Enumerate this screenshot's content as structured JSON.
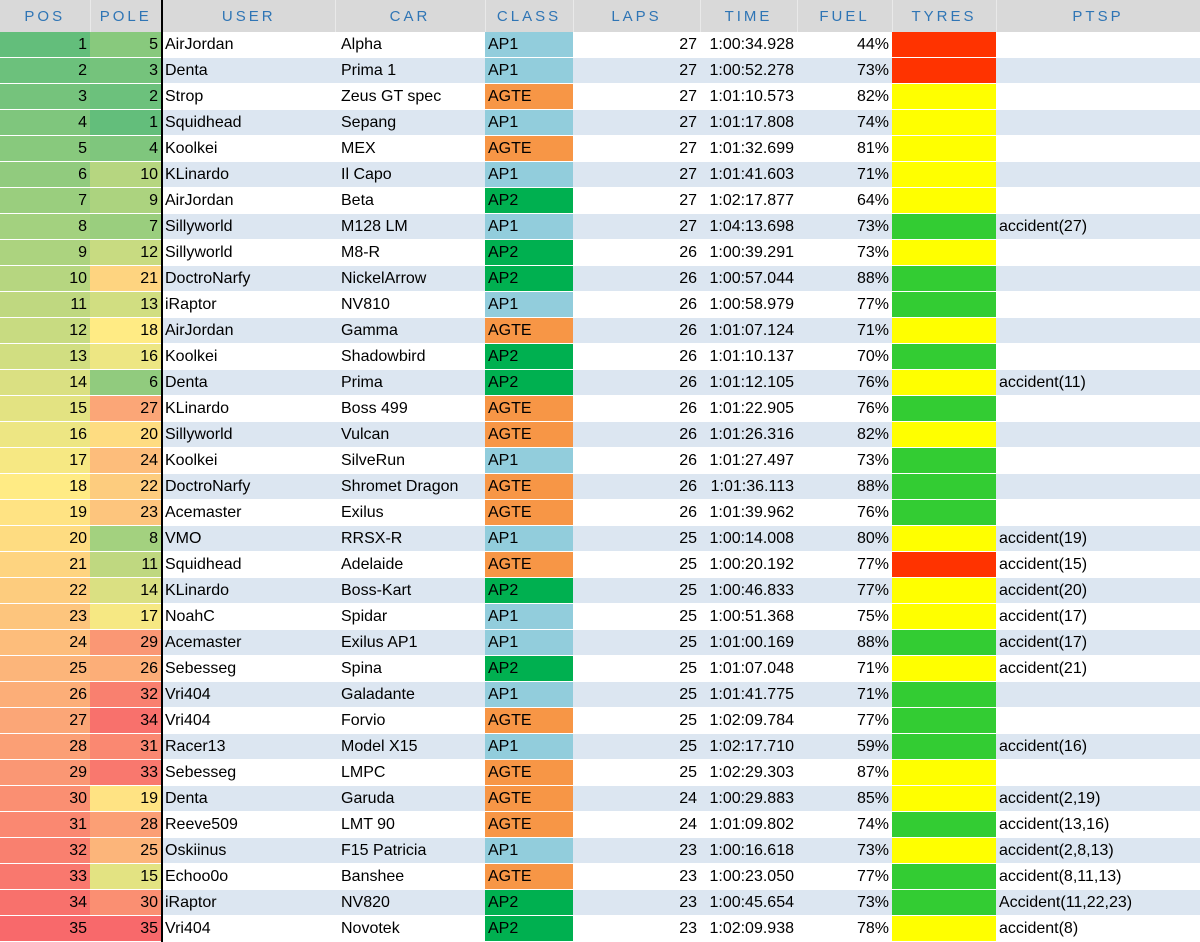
{
  "headers": {
    "pos": "POS",
    "pole": "POLE",
    "user": "USER",
    "car": "CAR",
    "class": "CLASS",
    "laps": "LAPS",
    "time": "TIME",
    "fuel": "FUEL",
    "tyres": "TYRES",
    "ptsp": "PTSP"
  },
  "colors": {
    "class_AP1": "#92cddc",
    "class_AP2": "#00b050",
    "class_AGTE": "#f79646",
    "tyre_red": "#ff3300",
    "tyre_yellow": "#ffff00",
    "tyre_green": "#33cc33",
    "scale_green": "#63be7b",
    "scale_yellow": "#ffeb84",
    "scale_red": "#f8696b"
  },
  "rows": [
    {
      "pos": "1",
      "pole": "5",
      "user": "AirJordan",
      "car": "Alpha",
      "class": "AP1",
      "laps": "27",
      "time": "1:00:34.928",
      "fuel": "44%",
      "tyre": "red",
      "ptsp": ""
    },
    {
      "pos": "2",
      "pole": "3",
      "user": "Denta",
      "car": "Prima 1",
      "class": "AP1",
      "laps": "27",
      "time": "1:00:52.278",
      "fuel": "73%",
      "tyre": "red",
      "ptsp": ""
    },
    {
      "pos": "3",
      "pole": "2",
      "user": "Strop",
      "car": "Zeus GT spec",
      "class": "AGTE",
      "laps": "27",
      "time": "1:01:10.573",
      "fuel": "82%",
      "tyre": "yellow",
      "ptsp": ""
    },
    {
      "pos": "4",
      "pole": "1",
      "user": "Squidhead",
      "car": "Sepang",
      "class": "AP1",
      "laps": "27",
      "time": "1:01:17.808",
      "fuel": "74%",
      "tyre": "yellow",
      "ptsp": ""
    },
    {
      "pos": "5",
      "pole": "4",
      "user": "Koolkei",
      "car": "MEX",
      "class": "AGTE",
      "laps": "27",
      "time": "1:01:32.699",
      "fuel": "81%",
      "tyre": "yellow",
      "ptsp": ""
    },
    {
      "pos": "6",
      "pole": "10",
      "user": "KLinardo",
      "car": "Il Capo",
      "class": "AP1",
      "laps": "27",
      "time": "1:01:41.603",
      "fuel": "71%",
      "tyre": "yellow",
      "ptsp": ""
    },
    {
      "pos": "7",
      "pole": "9",
      "user": "AirJordan",
      "car": "Beta",
      "class": "AP2",
      "laps": "27",
      "time": "1:02:17.877",
      "fuel": "64%",
      "tyre": "yellow",
      "ptsp": ""
    },
    {
      "pos": "8",
      "pole": "7",
      "user": "Sillyworld",
      "car": "M128 LM",
      "class": "AP1",
      "laps": "27",
      "time": "1:04:13.698",
      "fuel": "73%",
      "tyre": "green",
      "ptsp": "accident(27)"
    },
    {
      "pos": "9",
      "pole": "12",
      "user": "Sillyworld",
      "car": "M8-R",
      "class": "AP2",
      "laps": "26",
      "time": "1:00:39.291",
      "fuel": "73%",
      "tyre": "yellow",
      "ptsp": ""
    },
    {
      "pos": "10",
      "pole": "21",
      "user": "DoctroNarfy",
      "car": "NickelArrow",
      "class": "AP2",
      "laps": "26",
      "time": "1:00:57.044",
      "fuel": "88%",
      "tyre": "green",
      "ptsp": ""
    },
    {
      "pos": "11",
      "pole": "13",
      "user": "iRaptor",
      "car": "NV810",
      "class": "AP1",
      "laps": "26",
      "time": "1:00:58.979",
      "fuel": "77%",
      "tyre": "green",
      "ptsp": ""
    },
    {
      "pos": "12",
      "pole": "18",
      "user": "AirJordan",
      "car": "Gamma",
      "class": "AGTE",
      "laps": "26",
      "time": "1:01:07.124",
      "fuel": "71%",
      "tyre": "yellow",
      "ptsp": ""
    },
    {
      "pos": "13",
      "pole": "16",
      "user": "Koolkei",
      "car": "Shadowbird",
      "class": "AP2",
      "laps": "26",
      "time": "1:01:10.137",
      "fuel": "70%",
      "tyre": "green",
      "ptsp": ""
    },
    {
      "pos": "14",
      "pole": "6",
      "user": "Denta",
      "car": "Prima",
      "class": "AP2",
      "laps": "26",
      "time": "1:01:12.105",
      "fuel": "76%",
      "tyre": "yellow",
      "ptsp": "accident(11)"
    },
    {
      "pos": "15",
      "pole": "27",
      "user": "KLinardo",
      "car": "Boss 499",
      "class": "AGTE",
      "laps": "26",
      "time": "1:01:22.905",
      "fuel": "76%",
      "tyre": "green",
      "ptsp": ""
    },
    {
      "pos": "16",
      "pole": "20",
      "user": "Sillyworld",
      "car": "Vulcan",
      "class": "AGTE",
      "laps": "26",
      "time": "1:01:26.316",
      "fuel": "82%",
      "tyre": "yellow",
      "ptsp": ""
    },
    {
      "pos": "17",
      "pole": "24",
      "user": "Koolkei",
      "car": "SilveRun",
      "class": "AP1",
      "laps": "26",
      "time": "1:01:27.497",
      "fuel": "73%",
      "tyre": "green",
      "ptsp": ""
    },
    {
      "pos": "18",
      "pole": "22",
      "user": "DoctroNarfy",
      "car": "Shromet Dragon",
      "class": "AGTE",
      "laps": "26",
      "time": "1:01:36.113",
      "fuel": "88%",
      "tyre": "green",
      "ptsp": ""
    },
    {
      "pos": "19",
      "pole": "23",
      "user": "Acemaster",
      "car": "Exilus",
      "class": "AGTE",
      "laps": "26",
      "time": "1:01:39.962",
      "fuel": "76%",
      "tyre": "green",
      "ptsp": ""
    },
    {
      "pos": "20",
      "pole": "8",
      "user": "VMO",
      "car": "RRSX-R",
      "class": "AP1",
      "laps": "25",
      "time": "1:00:14.008",
      "fuel": "80%",
      "tyre": "yellow",
      "ptsp": "accident(19)"
    },
    {
      "pos": "21",
      "pole": "11",
      "user": "Squidhead",
      "car": "Adelaide",
      "class": "AGTE",
      "laps": "25",
      "time": "1:00:20.192",
      "fuel": "77%",
      "tyre": "red",
      "ptsp": "accident(15)"
    },
    {
      "pos": "22",
      "pole": "14",
      "user": "KLinardo",
      "car": "Boss-Kart",
      "class": "AP2",
      "laps": "25",
      "time": "1:00:46.833",
      "fuel": "77%",
      "tyre": "yellow",
      "ptsp": "accident(20)"
    },
    {
      "pos": "23",
      "pole": "17",
      "user": "NoahC",
      "car": "Spidar",
      "class": "AP1",
      "laps": "25",
      "time": "1:00:51.368",
      "fuel": "75%",
      "tyre": "yellow",
      "ptsp": "accident(17)"
    },
    {
      "pos": "24",
      "pole": "29",
      "user": "Acemaster",
      "car": "Exilus AP1",
      "class": "AP1",
      "laps": "25",
      "time": "1:01:00.169",
      "fuel": "88%",
      "tyre": "green",
      "ptsp": "accident(17)"
    },
    {
      "pos": "25",
      "pole": "26",
      "user": "Sebesseg",
      "car": "Spina",
      "class": "AP2",
      "laps": "25",
      "time": "1:01:07.048",
      "fuel": "71%",
      "tyre": "yellow",
      "ptsp": "accident(21)"
    },
    {
      "pos": "26",
      "pole": "32",
      "user": "Vri404",
      "car": "Galadante",
      "class": "AP1",
      "laps": "25",
      "time": "1:01:41.775",
      "fuel": "71%",
      "tyre": "green",
      "ptsp": ""
    },
    {
      "pos": "27",
      "pole": "34",
      "user": "Vri404",
      "car": "Forvio",
      "class": "AGTE",
      "laps": "25",
      "time": "1:02:09.784",
      "fuel": "77%",
      "tyre": "green",
      "ptsp": ""
    },
    {
      "pos": "28",
      "pole": "31",
      "user": "Racer13",
      "car": "Model X15",
      "class": "AP1",
      "laps": "25",
      "time": "1:02:17.710",
      "fuel": "59%",
      "tyre": "green",
      "ptsp": "accident(16)"
    },
    {
      "pos": "29",
      "pole": "33",
      "user": "Sebesseg",
      "car": "LMPC",
      "class": "AGTE",
      "laps": "25",
      "time": "1:02:29.303",
      "fuel": "87%",
      "tyre": "yellow",
      "ptsp": ""
    },
    {
      "pos": "30",
      "pole": "19",
      "user": "Denta",
      "car": "Garuda",
      "class": "AGTE",
      "laps": "24",
      "time": "1:00:29.883",
      "fuel": "85%",
      "tyre": "yellow",
      "ptsp": "accident(2,19)"
    },
    {
      "pos": "31",
      "pole": "28",
      "user": "Reeve509",
      "car": "LMT 90",
      "class": "AGTE",
      "laps": "24",
      "time": "1:01:09.802",
      "fuel": "74%",
      "tyre": "green",
      "ptsp": "accident(13,16)"
    },
    {
      "pos": "32",
      "pole": "25",
      "user": "Oskiinus",
      "car": "F15 Patricia",
      "class": "AP1",
      "laps": "23",
      "time": "1:00:16.618",
      "fuel": "73%",
      "tyre": "yellow",
      "ptsp": "accident(2,8,13)"
    },
    {
      "pos": "33",
      "pole": "15",
      "user": "Echoo0o",
      "car": "Banshee",
      "class": "AGTE",
      "laps": "23",
      "time": "1:00:23.050",
      "fuel": "77%",
      "tyre": "green",
      "ptsp": "accident(8,11,13)"
    },
    {
      "pos": "34",
      "pole": "30",
      "user": "iRaptor",
      "car": "NV820",
      "class": "AP2",
      "laps": "23",
      "time": "1:00:45.654",
      "fuel": "73%",
      "tyre": "green",
      "ptsp": "Accident(11,22,23)"
    },
    {
      "pos": "35",
      "pole": "35",
      "user": "Vri404",
      "car": "Novotek",
      "class": "AP2",
      "laps": "23",
      "time": "1:02:09.938",
      "fuel": "78%",
      "tyre": "yellow",
      "ptsp": "accident(8)"
    }
  ]
}
